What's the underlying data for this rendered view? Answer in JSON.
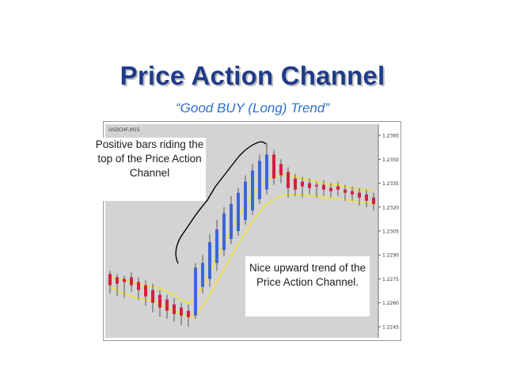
{
  "title": "Price Action Channel",
  "subtitle": "“Good BUY (Long) Trend”",
  "callouts": {
    "positive_bars": "Positive bars riding the top of the Price Action Channel",
    "upward_trend": "Nice upward trend of the Price Action Channel."
  },
  "colors": {
    "title": "#1f3b8a",
    "subtitle": "#2f6fd0",
    "plot_bg": "#d3d3d3",
    "bull_bar": "#3b66d6",
    "bear_bar": "#d41f3f",
    "channel": "#f2e33a",
    "bracket": "#000000"
  },
  "chart_data": {
    "type": "candlestick",
    "symbol_label": "USDCHF,M15",
    "ylim": [
      1.2238,
      1.2372
    ],
    "yticks": [
      "1.2365",
      "1.2350",
      "1.2335",
      "1.2320",
      "1.2305",
      "1.2290",
      "1.2275",
      "1.2260",
      "1.2245"
    ],
    "candles": [
      {
        "o": 1.2278,
        "h": 1.228,
        "l": 1.2266,
        "c": 1.2271
      },
      {
        "o": 1.2276,
        "h": 1.2278,
        "l": 1.2264,
        "c": 1.2272
      },
      {
        "o": 1.2275,
        "h": 1.2277,
        "l": 1.2263,
        "c": 1.2273
      },
      {
        "o": 1.2276,
        "h": 1.2279,
        "l": 1.2267,
        "c": 1.2271
      },
      {
        "o": 1.2273,
        "h": 1.2276,
        "l": 1.2262,
        "c": 1.2268
      },
      {
        "o": 1.2271,
        "h": 1.2274,
        "l": 1.2258,
        "c": 1.2264
      },
      {
        "o": 1.2268,
        "h": 1.2272,
        "l": 1.2254,
        "c": 1.226
      },
      {
        "o": 1.2265,
        "h": 1.2268,
        "l": 1.2251,
        "c": 1.2257
      },
      {
        "o": 1.2262,
        "h": 1.2265,
        "l": 1.225,
        "c": 1.2255
      },
      {
        "o": 1.2259,
        "h": 1.2263,
        "l": 1.2248,
        "c": 1.2253
      },
      {
        "o": 1.2257,
        "h": 1.226,
        "l": 1.2246,
        "c": 1.2252
      },
      {
        "o": 1.2255,
        "h": 1.2259,
        "l": 1.2245,
        "c": 1.2251
      },
      {
        "o": 1.2252,
        "h": 1.2285,
        "l": 1.225,
        "c": 1.2282
      },
      {
        "o": 1.227,
        "h": 1.229,
        "l": 1.2266,
        "c": 1.2285
      },
      {
        "o": 1.2275,
        "h": 1.2303,
        "l": 1.227,
        "c": 1.2298
      },
      {
        "o": 1.2285,
        "h": 1.2312,
        "l": 1.228,
        "c": 1.2306
      },
      {
        "o": 1.2293,
        "h": 1.232,
        "l": 1.2289,
        "c": 1.2316
      },
      {
        "o": 1.23,
        "h": 1.2327,
        "l": 1.2297,
        "c": 1.2322
      },
      {
        "o": 1.2305,
        "h": 1.2332,
        "l": 1.2302,
        "c": 1.2329
      },
      {
        "o": 1.2312,
        "h": 1.234,
        "l": 1.2309,
        "c": 1.2336
      },
      {
        "o": 1.2318,
        "h": 1.2347,
        "l": 1.2315,
        "c": 1.2343
      },
      {
        "o": 1.2325,
        "h": 1.2353,
        "l": 1.2322,
        "c": 1.2349
      },
      {
        "o": 1.2331,
        "h": 1.236,
        "l": 1.2328,
        "c": 1.2353
      },
      {
        "o": 1.2353,
        "h": 1.2356,
        "l": 1.2334,
        "c": 1.2338
      },
      {
        "o": 1.2347,
        "h": 1.235,
        "l": 1.2335,
        "c": 1.234
      },
      {
        "o": 1.2342,
        "h": 1.2345,
        "l": 1.2326,
        "c": 1.2332
      },
      {
        "o": 1.2338,
        "h": 1.2341,
        "l": 1.2327,
        "c": 1.2331
      },
      {
        "o": 1.2336,
        "h": 1.2339,
        "l": 1.2326,
        "c": 1.2333
      },
      {
        "o": 1.2335,
        "h": 1.2338,
        "l": 1.2328,
        "c": 1.2332
      },
      {
        "o": 1.2334,
        "h": 1.2336,
        "l": 1.2326,
        "c": 1.2333
      },
      {
        "o": 1.2334,
        "h": 1.2337,
        "l": 1.2327,
        "c": 1.2331
      },
      {
        "o": 1.2332,
        "h": 1.2335,
        "l": 1.2326,
        "c": 1.233
      },
      {
        "o": 1.2333,
        "h": 1.2336,
        "l": 1.2327,
        "c": 1.2331
      },
      {
        "o": 1.2331,
        "h": 1.2334,
        "l": 1.2324,
        "c": 1.2329
      },
      {
        "o": 1.233,
        "h": 1.2333,
        "l": 1.2324,
        "c": 1.2328
      },
      {
        "o": 1.2329,
        "h": 1.2332,
        "l": 1.2321,
        "c": 1.2326
      },
      {
        "o": 1.2328,
        "h": 1.2331,
        "l": 1.232,
        "c": 1.2324
      },
      {
        "o": 1.2326,
        "h": 1.2329,
        "l": 1.2318,
        "c": 1.2322
      }
    ],
    "channel_upper": [
      1.2276,
      1.2275,
      1.2274,
      1.2273,
      1.2272,
      1.2271,
      1.227,
      1.2269,
      1.2267,
      1.2265,
      1.2262,
      1.226,
      1.2263,
      1.227,
      1.2279,
      1.2288,
      1.2297,
      1.2306,
      1.2314,
      1.2322,
      1.2328,
      1.2333,
      1.2337,
      1.2339,
      1.234,
      1.234,
      1.2339,
      1.2338,
      1.2337,
      1.2336,
      1.2335,
      1.2334,
      1.2334,
      1.2333,
      1.2332,
      1.2331,
      1.2331,
      1.233
    ],
    "channel_lower": [
      1.227,
      1.2268,
      1.2266,
      1.2264,
      1.2263,
      1.2262,
      1.2261,
      1.2259,
      1.2257,
      1.2255,
      1.2253,
      1.2251,
      1.2252,
      1.2258,
      1.2265,
      1.2273,
      1.2281,
      1.2289,
      1.2297,
      1.2304,
      1.2311,
      1.2317,
      1.2322,
      1.2325,
      1.2327,
      1.2328,
      1.2328,
      1.2328,
      1.2327,
      1.2327,
      1.2326,
      1.2326,
      1.2325,
      1.2325,
      1.2324,
      1.2323,
      1.2323,
      1.2322
    ]
  }
}
